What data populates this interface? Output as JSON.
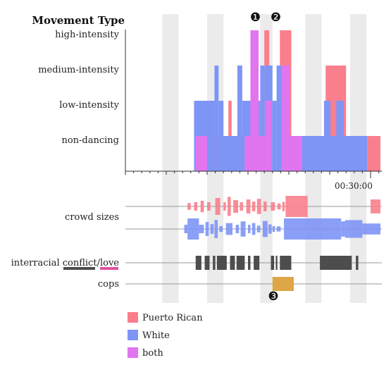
{
  "chart_data": {
    "type": "area",
    "title": "Movement Type",
    "xlabel": "",
    "ylabel": "",
    "x_axis": {
      "unit": "minutes",
      "domain": [
        0,
        59
      ],
      "tick_labels": [
        {
          "label": "00:30:00",
          "value": 30
        }
      ]
    },
    "colors": {
      "puerto_rican": "#fa7f8c",
      "white": "#7e95f6",
      "both": "#e075ef",
      "conflict": "#4d4d4d",
      "love": "#e052a0",
      "cops": "#dea646",
      "grid_band": "#ebebeb",
      "axis": "#333333"
    },
    "movement": {
      "levels": [
        "non-dancing",
        "low-intensity",
        "medium-intensity",
        "high-intensity"
      ],
      "series": [
        {
          "name": "Puerto Rican",
          "color": "#fa7f8c",
          "segments": [
            [
              9.8,
              12.6,
              1
            ],
            [
              12.6,
              13.0,
              2
            ],
            [
              13.0,
              14.6,
              1
            ],
            [
              14.6,
              15.6,
              2
            ],
            [
              15.6,
              17.0,
              1
            ],
            [
              17.0,
              17.6,
              4
            ],
            [
              18.9,
              20.3,
              4
            ],
            [
              20.3,
              21.0,
              1
            ],
            [
              24.5,
              27.0,
              3
            ],
            [
              29.6,
              34.6,
              1
            ]
          ]
        },
        {
          "name": "White",
          "color": "#7e95f6",
          "segments": [
            [
              8.4,
              10.9,
              2
            ],
            [
              10.9,
              11.4,
              3
            ],
            [
              11.4,
              12.0,
              2
            ],
            [
              12.0,
              13.7,
              1
            ],
            [
              13.7,
              14.3,
              3
            ],
            [
              14.3,
              16.5,
              2
            ],
            [
              16.5,
              17.0,
              3
            ],
            [
              17.0,
              18.0,
              3
            ],
            [
              18.0,
              18.5,
              2
            ],
            [
              18.5,
              19.6,
              3
            ],
            [
              19.6,
              20.6,
              1
            ],
            [
              21.6,
              29.6,
              1
            ],
            [
              24.3,
              25.1,
              2
            ],
            [
              25.1,
              25.8,
              1
            ],
            [
              25.8,
              26.7,
              2
            ]
          ]
        },
        {
          "name": "both",
          "color": "#e075ef",
          "segments": [
            [
              8.6,
              10.0,
              1
            ],
            [
              14.6,
              15.3,
              1
            ],
            [
              15.3,
              16.3,
              4
            ],
            [
              16.3,
              17.1,
              1
            ],
            [
              17.1,
              17.9,
              2
            ],
            [
              19.1,
              20.1,
              3
            ],
            [
              20.1,
              21.6,
              1
            ],
            [
              34.2,
              34.6,
              2
            ]
          ]
        }
      ]
    },
    "crowd_sizes": {
      "label": "crowd sizes",
      "series": [
        {
          "name": "Puerto Rican",
          "color": "#fa7f8c",
          "bars": [
            [
              7.6,
              8.0,
              1.6
            ],
            [
              8.4,
              8.8,
              2.0
            ],
            [
              9.2,
              9.6,
              2.7
            ],
            [
              10.0,
              10.4,
              2.0
            ],
            [
              11.0,
              11.6,
              4.0
            ],
            [
              12.0,
              12.3,
              2.0
            ],
            [
              12.5,
              12.9,
              4.5
            ],
            [
              13.2,
              13.8,
              3.0
            ],
            [
              14.0,
              14.4,
              2.0
            ],
            [
              14.8,
              15.3,
              3.3
            ],
            [
              15.5,
              15.9,
              2.3
            ],
            [
              16.1,
              16.6,
              3.6
            ],
            [
              16.9,
              17.3,
              2.3
            ],
            [
              17.8,
              18.3,
              2.0
            ],
            [
              18.6,
              19.0,
              1.4
            ],
            [
              19.2,
              19.5,
              2.2
            ],
            [
              19.6,
              20.3,
              5.0
            ],
            [
              20.3,
              22.3,
              5.0
            ],
            [
              30.0,
              32.0,
              3.3
            ],
            [
              32.0,
              32.4,
              2.2
            ],
            [
              32.4,
              33.8,
              4.0
            ],
            [
              33.8,
              35.0,
              1.6
            ]
          ]
        },
        {
          "name": "White",
          "color": "#7e95f6",
          "bars": [
            [
              7.2,
              7.6,
              2.0
            ],
            [
              7.6,
              9.0,
              5.0
            ],
            [
              9.0,
              9.6,
              2.0
            ],
            [
              9.8,
              10.2,
              3.3
            ],
            [
              10.4,
              10.8,
              2.3
            ],
            [
              10.9,
              11.3,
              4.3
            ],
            [
              11.5,
              11.9,
              1.4
            ],
            [
              12.3,
              13.1,
              2.8
            ],
            [
              13.5,
              13.9,
              2.0
            ],
            [
              14.1,
              14.7,
              3.6
            ],
            [
              15.0,
              15.3,
              2.0
            ],
            [
              15.5,
              15.9,
              2.8
            ],
            [
              16.1,
              16.5,
              1.6
            ],
            [
              16.8,
              17.4,
              3.8
            ],
            [
              17.5,
              17.9,
              2.2
            ],
            [
              18.0,
              18.3,
              1.4
            ],
            [
              18.5,
              19.0,
              1.2
            ],
            [
              19.4,
              21.6,
              5.0
            ],
            [
              21.6,
              26.4,
              5.0
            ],
            [
              26.4,
              26.9,
              3.6
            ],
            [
              26.9,
              29.0,
              4.2
            ],
            [
              29.0,
              32.0,
              2.6
            ],
            [
              32.0,
              33.5,
              1.6
            ]
          ]
        }
      ]
    },
    "interracial": {
      "label_prefix": "interracial ",
      "label_conflict": "conflict",
      "label_sep": "/",
      "label_love": "love",
      "conflict_periods": [
        [
          8.6,
          9.3
        ],
        [
          9.7,
          10.3
        ],
        [
          10.7,
          11.0
        ],
        [
          11.2,
          12.4
        ],
        [
          12.8,
          13.4
        ],
        [
          13.6,
          14.6
        ],
        [
          15.0,
          15.3
        ],
        [
          15.7,
          16.4
        ],
        [
          17.8,
          18.2
        ],
        [
          18.4,
          18.6
        ],
        [
          18.9,
          20.3
        ],
        [
          23.8,
          27.7
        ],
        [
          28.2,
          28.5
        ]
      ]
    },
    "cops": {
      "label": "cops",
      "periods": [
        [
          18.0,
          20.6
        ]
      ]
    },
    "annotations": [
      {
        "id": "1",
        "glyph": "❶",
        "at": 15.9
      },
      {
        "id": "2",
        "glyph": "❷",
        "at": 18.4
      },
      {
        "id": "3",
        "glyph": "❸",
        "at": 18.1
      }
    ],
    "grid_bands": [
      [
        4.5,
        6.5
      ],
      [
        10.0,
        12.0
      ],
      [
        16.5,
        18.0
      ],
      [
        22.0,
        24.0
      ],
      [
        27.5,
        29.5
      ],
      [
        32.0,
        33.8
      ]
    ],
    "legend": {
      "placement": "bottom-left",
      "items": [
        {
          "label": "Puerto Rican",
          "color": "#fa7f8c"
        },
        {
          "label": "White",
          "color": "#7e95f6"
        },
        {
          "label": "both",
          "color": "#e075ef"
        }
      ]
    }
  }
}
